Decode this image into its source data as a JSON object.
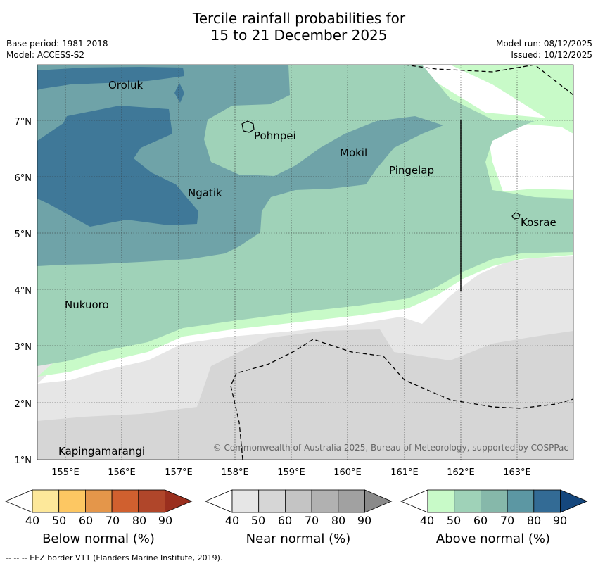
{
  "title": {
    "line1": "Tercile rainfall probabilities for",
    "line2": "15 to 21 December 2025"
  },
  "meta": {
    "base_period": "Base period: 1981-2018",
    "model": "Model: ACCESS-S2",
    "model_run": "Model run: 08/12/2025",
    "issued": "Issued: 10/12/2025"
  },
  "map": {
    "lon_ticks": [
      "155°E",
      "156°E",
      "157°E",
      "158°E",
      "159°E",
      "160°E",
      "161°E",
      "162°E",
      "163°E"
    ],
    "lat_ticks": [
      "7°N",
      "6°N",
      "5°N",
      "4°N",
      "3°N",
      "2°N",
      "1°N"
    ],
    "places": [
      {
        "name": "Oroluk"
      },
      {
        "name": "Pohnpei"
      },
      {
        "name": "Mokil"
      },
      {
        "name": "Pingelap"
      },
      {
        "name": "Ngatik"
      },
      {
        "name": "Kosrae"
      },
      {
        "name": "Nukuoro"
      },
      {
        "name": "Kapingamarangi"
      }
    ],
    "copyright": "© Commonwealth of Australia 2025, Bureau of Meteorology, supported by COSPPac"
  },
  "colorbars": [
    {
      "title": "Below normal (%)",
      "ticks": [
        "40",
        "50",
        "60",
        "70",
        "80",
        "90"
      ],
      "colors": [
        "#ffffff",
        "#fde89a",
        "#fdc762",
        "#e4964a",
        "#d0602f",
        "#b0462a",
        "#9a2f1e"
      ]
    },
    {
      "title": "Near normal (%)",
      "ticks": [
        "40",
        "50",
        "60",
        "70",
        "80",
        "90"
      ],
      "colors": [
        "#ffffff",
        "#e6e6e6",
        "#d6d6d6",
        "#c4c4c4",
        "#b1b1b1",
        "#a1a1a1",
        "#8a8a8a"
      ]
    },
    {
      "title": "Above normal (%)",
      "ticks": [
        "40",
        "50",
        "60",
        "70",
        "80",
        "90"
      ],
      "colors": [
        "#ffffff",
        "#c8fac8",
        "#9fd2b8",
        "#86b8aa",
        "#5c97a3",
        "#336b95",
        "#15477d"
      ]
    }
  ],
  "footnote": "--  --  -- EEZ border V11 (Flanders Marine Institute, 2019)."
}
